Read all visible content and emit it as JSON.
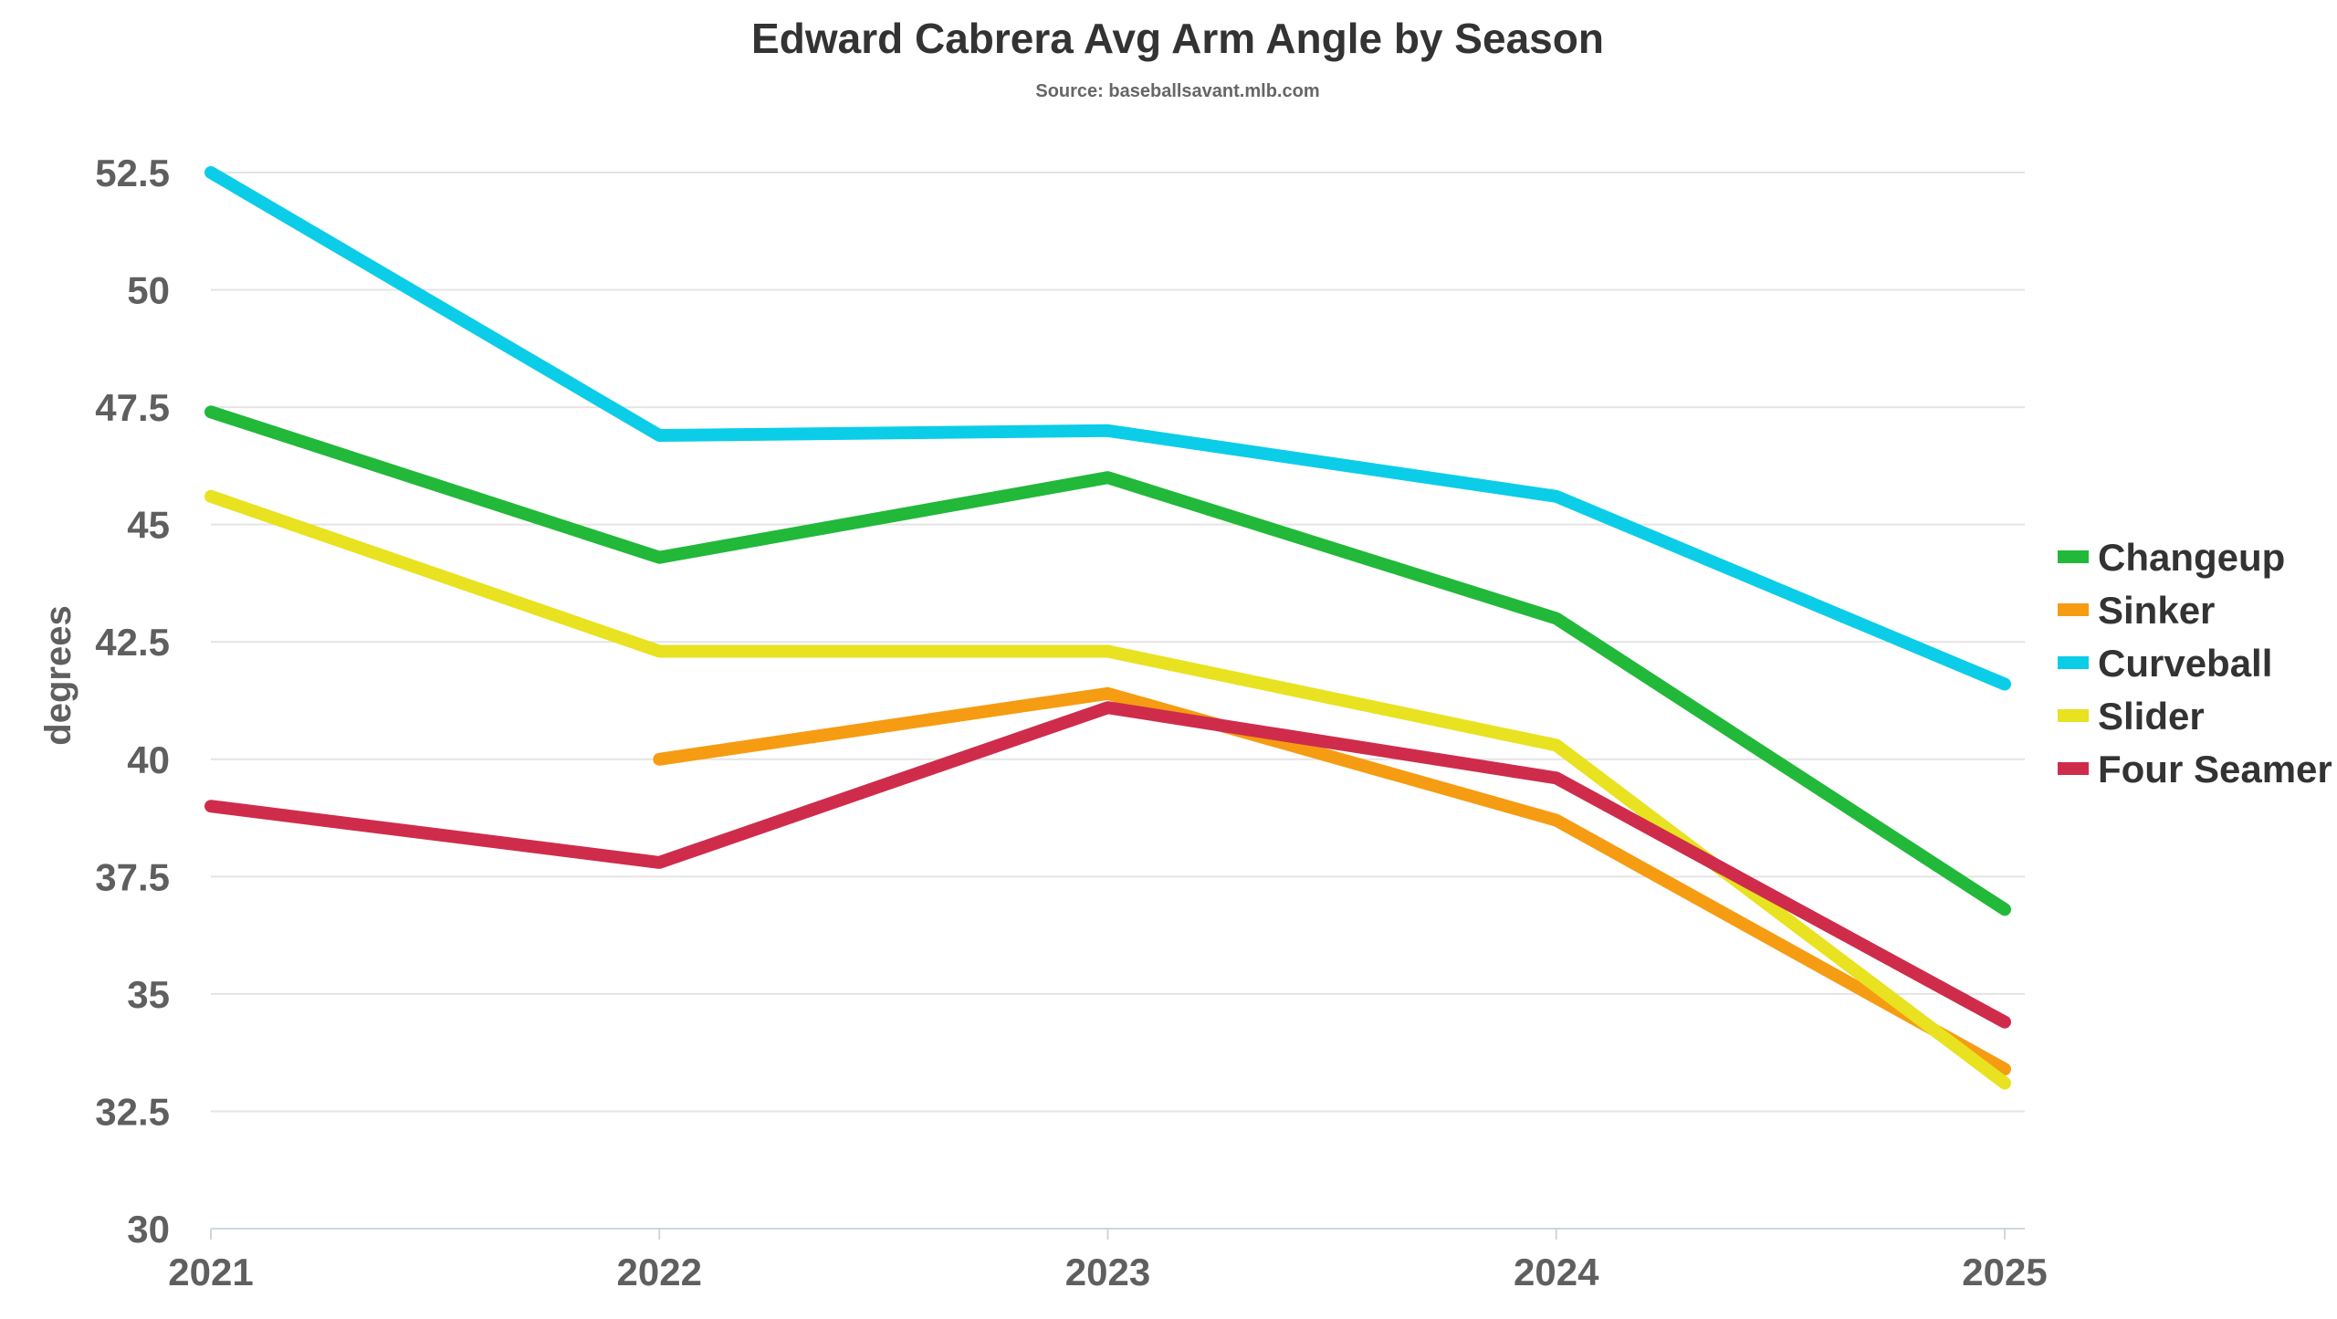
{
  "chart_data": {
    "type": "line",
    "title": "Edward Cabrera Avg Arm Angle by Season",
    "subtitle": "Source: baseballsavant.mlb.com",
    "xlabel": "",
    "ylabel": "degrees",
    "x": [
      "2021",
      "2022",
      "2023",
      "2024",
      "2025"
    ],
    "ylim": [
      30,
      52.5
    ],
    "yticks": [
      "30",
      "32.5",
      "35",
      "37.5",
      "40",
      "42.5",
      "45",
      "47.5",
      "50",
      "52.5"
    ],
    "grid": true,
    "legend_position": "right",
    "series": [
      {
        "name": "Changeup",
        "color": "#22b83a",
        "values": [
          47.4,
          44.3,
          46.0,
          43.0,
          36.8
        ]
      },
      {
        "name": "Sinker",
        "color": "#f59c12",
        "values": [
          null,
          40.0,
          41.4,
          38.7,
          33.4
        ]
      },
      {
        "name": "Curveball",
        "color": "#0bcde8",
        "values": [
          52.5,
          46.9,
          47.0,
          45.6,
          41.6
        ]
      },
      {
        "name": "Slider",
        "color": "#e8e220",
        "values": [
          45.6,
          42.3,
          42.3,
          40.3,
          33.1
        ]
      },
      {
        "name": "Four Seamer",
        "color": "#cf2c4b",
        "values": [
          39.0,
          37.8,
          41.1,
          39.6,
          34.4
        ]
      }
    ]
  }
}
